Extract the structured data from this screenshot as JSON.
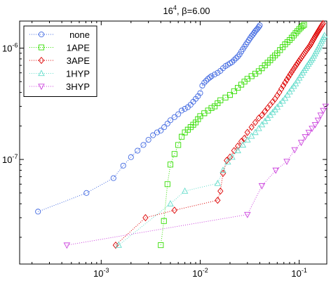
{
  "chart_data": {
    "type": "scatter",
    "title_base": "16",
    "title_exp": "4",
    "title_rest": ", β=6.00",
    "xlabel": "",
    "ylabel": "",
    "xscale": "log",
    "yscale": "log",
    "xlim": [
      0.00015,
      0.19
    ],
    "ylim": [
      1.15e-08,
      1.75e-06
    ],
    "grid": false,
    "legend_position": "top-left",
    "x_ticks": [
      {
        "value": 0.001,
        "base": "10",
        "exp": "-3"
      },
      {
        "value": 0.01,
        "base": "10",
        "exp": "-2"
      },
      {
        "value": 0.1,
        "base": "10",
        "exp": "-1"
      }
    ],
    "y_ticks": [
      {
        "value": 1e-07,
        "base": "10",
        "exp": "-7"
      },
      {
        "value": 1e-06,
        "base": "10",
        "exp": "-6"
      }
    ],
    "series": [
      {
        "name": "none",
        "marker": "circle",
        "color": "#4169e1",
        "x": [
          0.00023,
          0.00071,
          0.00133,
          0.00167,
          0.002,
          0.00233,
          0.00267,
          0.003,
          0.00333,
          0.00367,
          0.004,
          0.00433,
          0.00467,
          0.005,
          0.0055,
          0.006,
          0.0065,
          0.007,
          0.0075,
          0.008,
          0.0085,
          0.009,
          0.0095,
          0.01,
          0.0105,
          0.011,
          0.0115,
          0.012,
          0.0125,
          0.013,
          0.014,
          0.015,
          0.016,
          0.017,
          0.018,
          0.019,
          0.02,
          0.021,
          0.022,
          0.023,
          0.024,
          0.025,
          0.026,
          0.027,
          0.028,
          0.029,
          0.03,
          0.031,
          0.032,
          0.033,
          0.034,
          0.035,
          0.036,
          0.037,
          0.038,
          0.039,
          0.04
        ],
        "y": [
          3.4e-08,
          5e-08,
          6.8e-08,
          8.8e-08,
          1.05e-07,
          1.2e-07,
          1.35e-07,
          1.5e-07,
          1.65e-07,
          1.75e-07,
          1.82e-07,
          1.95e-07,
          2.1e-07,
          2.25e-07,
          2.4e-07,
          2.55e-07,
          2.75e-07,
          2.85e-07,
          2.95e-07,
          3.1e-07,
          3.3e-07,
          3.5e-07,
          3.7e-07,
          3.95e-07,
          4.6e-07,
          4.9e-07,
          5.1e-07,
          5.3e-07,
          5.45e-07,
          5.6e-07,
          5.8e-07,
          6e-07,
          6.25e-07,
          6.6e-07,
          6.9e-07,
          7.1e-07,
          7.3e-07,
          7.5e-07,
          7.8e-07,
          8.1e-07,
          8.4e-07,
          8.8e-07,
          9.3e-07,
          9.8e-07,
          1.03e-06,
          1.08e-06,
          1.13e-06,
          1.18e-06,
          1.23e-06,
          1.28e-06,
          1.32e-06,
          1.37e-06,
          1.42e-06,
          1.46e-06,
          1.5e-06,
          1.55e-06,
          1.6e-06
        ]
      },
      {
        "name": "1APE",
        "marker": "square",
        "color": "#33dd00",
        "x": [
          0.004,
          0.0043,
          0.00467,
          0.005,
          0.0055,
          0.006,
          0.0065,
          0.007,
          0.0075,
          0.008,
          0.0085,
          0.009,
          0.0095,
          0.01,
          0.011,
          0.012,
          0.013,
          0.014,
          0.015,
          0.016,
          0.018,
          0.02,
          0.022,
          0.024,
          0.026,
          0.028,
          0.03,
          0.033,
          0.036,
          0.039,
          0.042,
          0.045,
          0.048,
          0.051,
          0.054,
          0.057,
          0.06,
          0.064,
          0.068,
          0.072,
          0.076,
          0.08,
          0.084,
          0.088,
          0.092,
          0.096,
          0.1,
          0.104,
          0.108,
          0.112
        ],
        "y": [
          1.7e-08,
          2.8e-08,
          6e-08,
          9e-08,
          1.12e-07,
          1.35e-07,
          1.6e-07,
          1.75e-07,
          1.85e-07,
          1.95e-07,
          2.05e-07,
          2.15e-07,
          2.3e-07,
          2.45e-07,
          2.6e-07,
          2.75e-07,
          2.9e-07,
          3e-07,
          3.2e-07,
          3.4e-07,
          3.6e-07,
          3.8e-07,
          4.1e-07,
          4.4e-07,
          4.7e-07,
          5e-07,
          5.3e-07,
          5.6e-07,
          5.9e-07,
          6.2e-07,
          6.6e-07,
          7e-07,
          7.4e-07,
          7.8e-07,
          8.2e-07,
          8.6e-07,
          9e-07,
          9.6e-07,
          1.02e-06,
          1.08e-06,
          1.13e-06,
          1.18e-06,
          1.24e-06,
          1.3e-06,
          1.36e-06,
          1.42e-06,
          1.48e-06,
          1.53e-06,
          1.58e-06,
          1.62e-06
        ]
      },
      {
        "name": "3APE",
        "marker": "diamond",
        "color": "#dd0000",
        "x": [
          0.0014,
          0.0028,
          0.0055,
          0.015,
          0.016,
          0.017,
          0.0185,
          0.02,
          0.022,
          0.024,
          0.026,
          0.028,
          0.03,
          0.033,
          0.036,
          0.039,
          0.042,
          0.045,
          0.048,
          0.051,
          0.054,
          0.057,
          0.06,
          0.063,
          0.066,
          0.069,
          0.072,
          0.075,
          0.078,
          0.081,
          0.084,
          0.087,
          0.09,
          0.093,
          0.096,
          0.099,
          0.102,
          0.105,
          0.108,
          0.111,
          0.114,
          0.117,
          0.12,
          0.123,
          0.126,
          0.129,
          0.132,
          0.135,
          0.138,
          0.141,
          0.144,
          0.147,
          0.15,
          0.153,
          0.156,
          0.159,
          0.162,
          0.165,
          0.168,
          0.171,
          0.174
        ],
        "y": [
          1.7e-08,
          3e-08,
          3.5e-08,
          4.3e-08,
          5.2e-08,
          7.5e-08,
          9.8e-08,
          1.05e-07,
          1.2e-07,
          1.32e-07,
          1.45e-07,
          1.55e-07,
          1.75e-07,
          1.95e-07,
          2.15e-07,
          2.35e-07,
          2.5e-07,
          2.7e-07,
          2.9e-07,
          3.1e-07,
          3.3e-07,
          3.5e-07,
          3.75e-07,
          4e-07,
          4.3e-07,
          4.6e-07,
          4.9e-07,
          5.2e-07,
          5.5e-07,
          5.8e-07,
          6.1e-07,
          6.4e-07,
          6.7e-07,
          7e-07,
          7.3e-07,
          7.6e-07,
          7.9e-07,
          8.2e-07,
          8.5e-07,
          8.8e-07,
          9.1e-07,
          9.4e-07,
          9.7e-07,
          1e-06,
          1.03e-06,
          1.06e-06,
          1.1e-06,
          1.14e-06,
          1.18e-06,
          1.22e-06,
          1.26e-06,
          1.3e-06,
          1.34e-06,
          1.38e-06,
          1.42e-06,
          1.46e-06,
          1.5e-06,
          1.54e-06,
          1.58e-06,
          1.62e-06,
          1.66e-06
        ]
      },
      {
        "name": "1HYP",
        "marker": "triangle-up",
        "color": "#66ddcc",
        "x": [
          0.0015,
          0.005,
          0.007,
          0.015,
          0.017,
          0.019,
          0.021,
          0.024,
          0.027,
          0.03,
          0.033,
          0.036,
          0.039,
          0.042,
          0.045,
          0.048,
          0.051,
          0.054,
          0.057,
          0.06,
          0.064,
          0.068,
          0.072,
          0.076,
          0.08,
          0.084,
          0.088,
          0.092,
          0.096,
          0.1,
          0.104,
          0.108,
          0.112,
          0.116,
          0.12,
          0.124,
          0.128,
          0.132,
          0.136,
          0.14,
          0.144,
          0.148,
          0.152,
          0.156,
          0.16,
          0.164,
          0.168,
          0.172,
          0.176,
          0.18
        ],
        "y": [
          1.7e-08,
          4e-08,
          5.2e-08,
          6.1e-08,
          8e-08,
          9.5e-08,
          1.05e-07,
          1.2e-07,
          1.35e-07,
          1.5e-07,
          1.62e-07,
          1.75e-07,
          1.9e-07,
          2.05e-07,
          2.2e-07,
          2.35e-07,
          2.5e-07,
          2.65e-07,
          2.8e-07,
          2.95e-07,
          3.15e-07,
          3.35e-07,
          3.55e-07,
          3.8e-07,
          4.05e-07,
          4.3e-07,
          4.55e-07,
          4.8e-07,
          5.1e-07,
          5.4e-07,
          5.7e-07,
          6e-07,
          6.3e-07,
          6.6e-07,
          6.9e-07,
          7.2e-07,
          7.5e-07,
          7.8e-07,
          8.1e-07,
          8.5e-07,
          8.9e-07,
          9.3e-07,
          9.7e-07,
          1.01e-06,
          1.05e-06,
          1.1e-06,
          1.15e-06,
          1.2e-06,
          1.25e-06,
          1.3e-06
        ]
      },
      {
        "name": "3HYP",
        "marker": "triangle-down",
        "color": "#cc44dd",
        "x": [
          0.00045,
          0.03,
          0.042,
          0.058,
          0.075,
          0.09,
          0.105,
          0.115,
          0.125,
          0.135,
          0.145,
          0.155,
          0.165,
          0.175,
          0.185
        ],
        "y": [
          1.7e-08,
          3.2e-08,
          5.8e-08,
          8e-08,
          9.6e-08,
          1.22e-07,
          1.42e-07,
          1.6e-07,
          1.75e-07,
          1.9e-07,
          2.05e-07,
          2.25e-07,
          2.5e-07,
          2.75e-07,
          3e-07
        ]
      }
    ]
  }
}
